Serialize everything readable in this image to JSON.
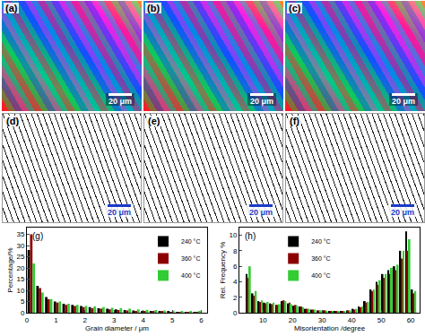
{
  "micrographs": [
    {
      "label": "(a)",
      "scale_bar": "20 μm"
    },
    {
      "label": "(b)",
      "scale_bar": "20 μm"
    },
    {
      "label": "(c)",
      "scale_bar": "20 μm"
    },
    {
      "label": "(d)",
      "scale_bar": "20 μm"
    },
    {
      "label": "(e)",
      "scale_bar": "20 μm"
    },
    {
      "label": "(f)",
      "scale_bar": "20 μm"
    }
  ],
  "chart_data": [
    {
      "type": "bar",
      "annotations": [
        "(g)"
      ],
      "x_label": "Grain diameter / μm",
      "y_label": "Percentage/%",
      "x": [
        0.15,
        0.45,
        0.75,
        1.05,
        1.35,
        1.65,
        1.95,
        2.25,
        2.55,
        2.85,
        3.15,
        3.45,
        3.75,
        4.05,
        4.35,
        4.65,
        4.95,
        5.25,
        5.55,
        5.85
      ],
      "series": [
        {
          "name": "240 °C",
          "color": "#000000",
          "values": [
            28,
            12,
            7,
            5,
            4,
            3.5,
            3,
            2.5,
            2,
            1.8,
            1.5,
            1.2,
            1,
            0.8,
            0.7,
            0.6,
            0.5,
            0.4,
            0.3,
            0.3
          ]
        },
        {
          "name": "360 °C",
          "color": "#8b0000",
          "values": [
            35,
            11,
            6,
            4.5,
            3.5,
            3,
            2.5,
            2,
            1.8,
            1.5,
            1.2,
            1,
            0.8,
            0.7,
            0.6,
            0.5,
            0.4,
            0.3,
            0.3,
            0.2
          ]
        },
        {
          "name": "400 °C",
          "color": "#33cc33",
          "values": [
            22,
            9,
            6,
            5,
            4,
            3.5,
            3,
            2.8,
            2.5,
            2.2,
            2,
            1.8,
            1.5,
            1.3,
            1.2,
            1,
            0.9,
            0.8,
            0.7,
            0.6
          ]
        }
      ],
      "xlim": [
        0,
        6.2
      ],
      "xticks": [
        0,
        1,
        2,
        3,
        4,
        5,
        6
      ],
      "ylim": [
        0,
        38
      ],
      "yticks": [
        0,
        5,
        10,
        15,
        20,
        25,
        30,
        35
      ],
      "legend": "upper right",
      "grid": false
    },
    {
      "type": "bar",
      "annotations": [
        "(h)"
      ],
      "x_label": "Misorientation /degree",
      "y_label": "Rel. Frequency %",
      "x": [
        5,
        7,
        9,
        11,
        13,
        15,
        17,
        19,
        21,
        23,
        25,
        27,
        29,
        31,
        33,
        35,
        37,
        39,
        41,
        43,
        45,
        47,
        49,
        51,
        53,
        55,
        57,
        59,
        61
      ],
      "series": [
        {
          "name": "240 °C",
          "color": "#000000",
          "values": [
            5,
            2.5,
            1.5,
            1.3,
            1.2,
            1.0,
            1.5,
            1.2,
            0.9,
            0.8,
            0.5,
            0.4,
            0.3,
            0.3,
            0.2,
            0.2,
            0.2,
            0.3,
            0.5,
            0.8,
            1.5,
            3,
            4,
            5,
            5.5,
            6,
            8,
            10.5,
            3
          ]
        },
        {
          "name": "360 °C",
          "color": "#8b0000",
          "values": [
            4.5,
            2.2,
            1.4,
            1.2,
            1.1,
            1.0,
            1.6,
            1.3,
            1.0,
            0.8,
            0.5,
            0.4,
            0.3,
            0.3,
            0.2,
            0.2,
            0.2,
            0.3,
            0.4,
            0.7,
            1.3,
            2.8,
            3.6,
            4.5,
            5,
            5.5,
            7,
            8,
            2.5
          ]
        },
        {
          "name": "400 °C",
          "color": "#33cc33",
          "values": [
            6,
            2.8,
            1.6,
            1.4,
            1.3,
            1.1,
            1.5,
            1.1,
            0.9,
            0.7,
            0.5,
            0.4,
            0.3,
            0.2,
            0.2,
            0.2,
            0.2,
            0.3,
            0.5,
            0.8,
            1.4,
            3,
            4.2,
            5,
            5.8,
            6.2,
            8,
            9.5,
            2.8
          ]
        }
      ],
      "xlim": [
        2,
        63
      ],
      "xticks": [
        10,
        20,
        30,
        40,
        50,
        60
      ],
      "ylim": [
        0,
        11
      ],
      "yticks": [
        0,
        2,
        4,
        6,
        8,
        10
      ],
      "legend": "upper left",
      "grid": false
    }
  ]
}
